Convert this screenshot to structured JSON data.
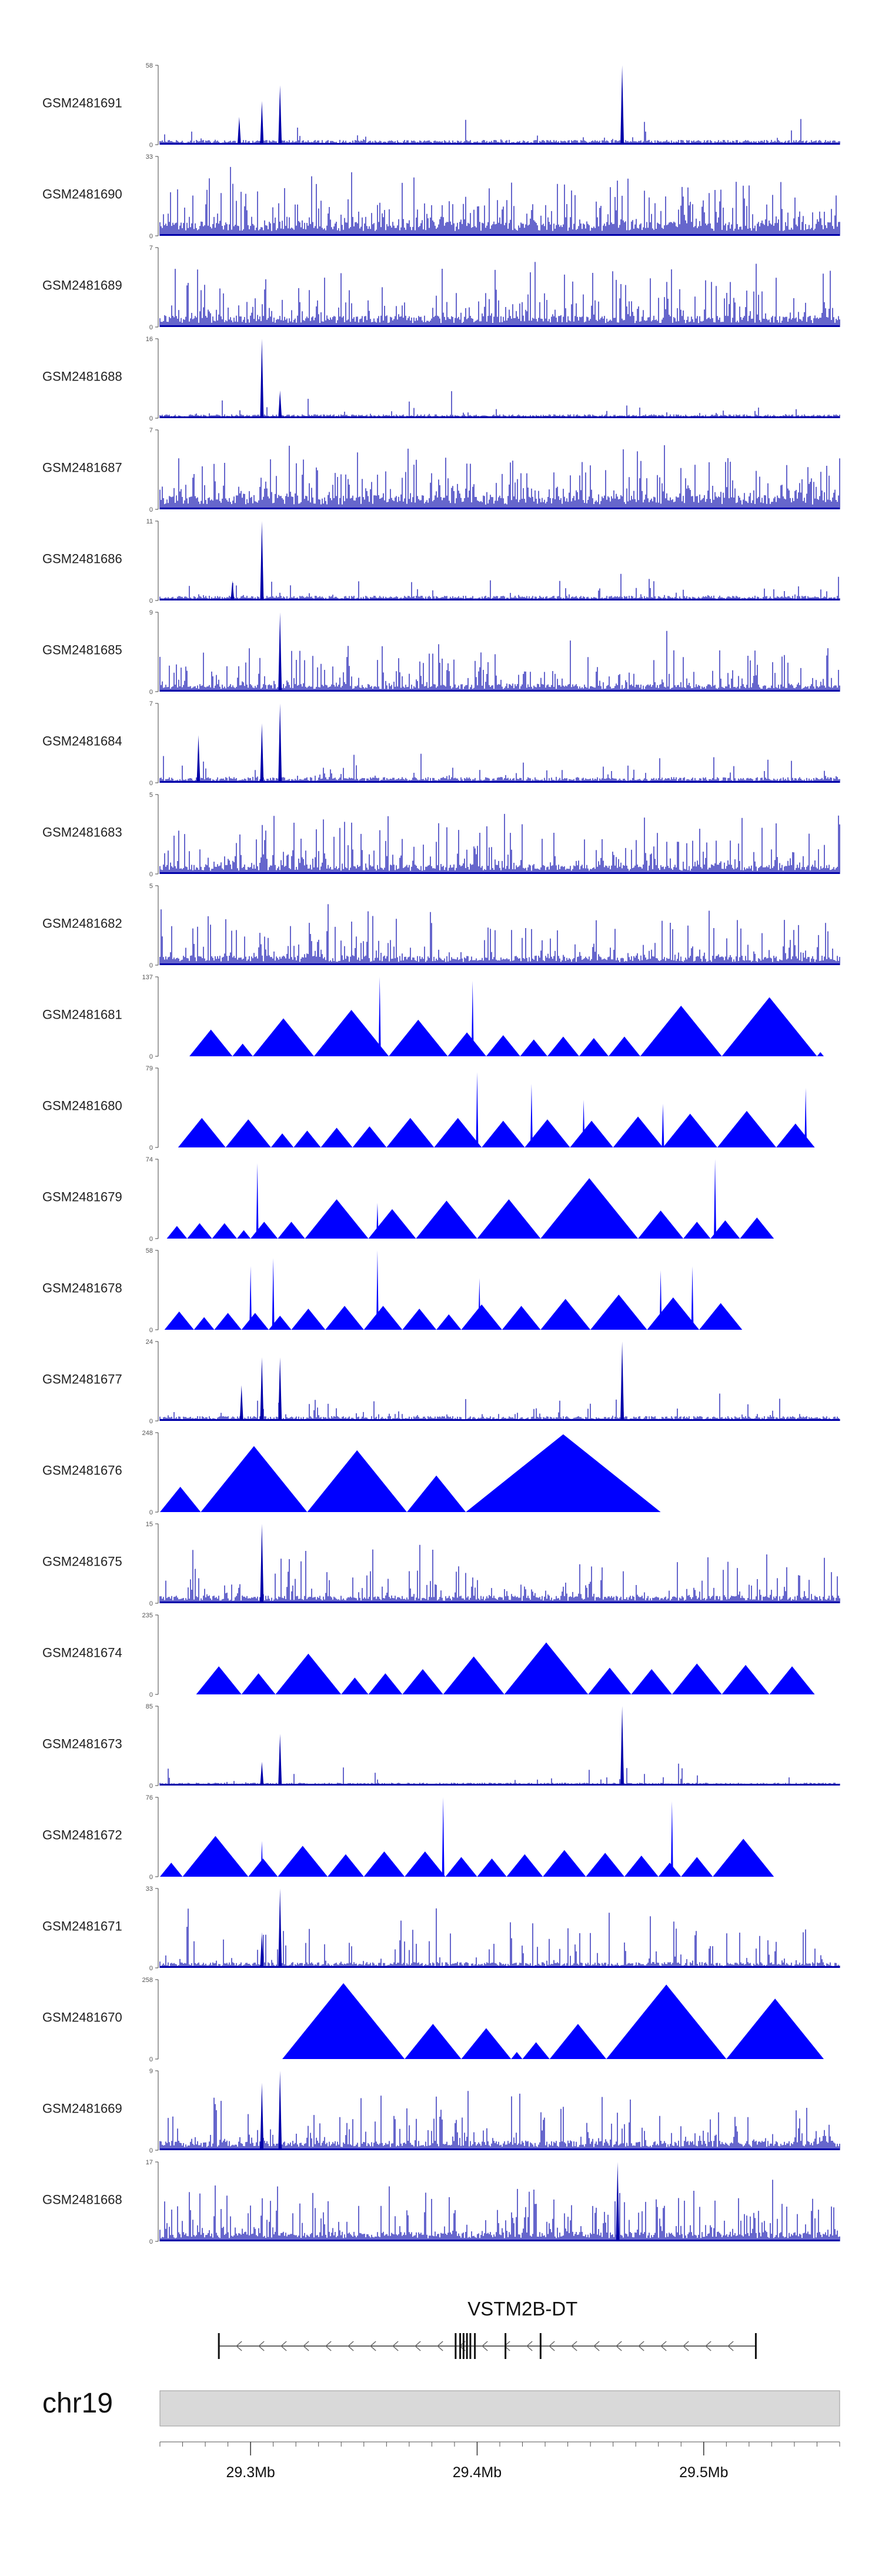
{
  "chart_data": {
    "type": "genome-browser-tracks",
    "colors": {
      "signal": "#0000ff",
      "spike": "#0000aa",
      "axis": "#444444",
      "ideogram": "#d9d9d9"
    },
    "region": {
      "chromosome": "chr19",
      "start_mb": 29.26,
      "end_mb": 29.56
    },
    "tracks": [
      {
        "name": "GSM2481691",
        "max": 58,
        "style": "spiky",
        "baseline": 0.05,
        "density": 0.06,
        "peaks": [
          {
            "pos": 29.295,
            "h": 0.35
          },
          {
            "pos": 29.305,
            "h": 0.55
          },
          {
            "pos": 29.313,
            "h": 0.75
          },
          {
            "pos": 29.464,
            "h": 1.0
          }
        ]
      },
      {
        "name": "GSM2481690",
        "max": 33,
        "style": "dense",
        "baseline": 0.15,
        "density": 0.45
      },
      {
        "name": "GSM2481689",
        "max": 7,
        "style": "dense",
        "baseline": 0.12,
        "density": 0.4
      },
      {
        "name": "GSM2481688",
        "max": 16,
        "style": "spiky",
        "baseline": 0.04,
        "density": 0.05,
        "peaks": [
          {
            "pos": 29.305,
            "h": 1.0
          },
          {
            "pos": 29.313,
            "h": 0.35
          }
        ]
      },
      {
        "name": "GSM2481687",
        "max": 7,
        "style": "dense",
        "baseline": 0.15,
        "density": 0.45
      },
      {
        "name": "GSM2481686",
        "max": 11,
        "style": "spiky",
        "baseline": 0.05,
        "density": 0.08,
        "peaks": [
          {
            "pos": 29.305,
            "h": 1.0
          },
          {
            "pos": 29.292,
            "h": 0.25
          }
        ]
      },
      {
        "name": "GSM2481685",
        "max": 9,
        "style": "dense",
        "baseline": 0.08,
        "density": 0.3,
        "peaks": [
          {
            "pos": 29.313,
            "h": 1.0
          }
        ]
      },
      {
        "name": "GSM2481684",
        "max": 7,
        "style": "spiky",
        "baseline": 0.06,
        "density": 0.12,
        "peaks": [
          {
            "pos": 29.313,
            "h": 1.0
          },
          {
            "pos": 29.305,
            "h": 0.75
          },
          {
            "pos": 29.277,
            "h": 0.6
          }
        ]
      },
      {
        "name": "GSM2481683",
        "max": 5,
        "style": "dense",
        "baseline": 0.1,
        "density": 0.35
      },
      {
        "name": "GSM2481682",
        "max": 5,
        "style": "dense",
        "baseline": 0.1,
        "density": 0.35
      },
      {
        "name": "GSM2481681",
        "max": 137,
        "style": "triangles",
        "starts": [
          29.273,
          29.292,
          29.301,
          29.328,
          29.361,
          29.387,
          29.404,
          29.419,
          29.431,
          29.445,
          29.458,
          29.472,
          29.508,
          29.55,
          29.553
        ],
        "peaks": [
          {
            "pos": 29.357,
            "h": 1.0
          },
          {
            "pos": 29.398,
            "h": 0.95
          }
        ]
      },
      {
        "name": "GSM2481680",
        "max": 79,
        "style": "triangles",
        "starts": [
          29.268,
          29.289,
          29.309,
          29.319,
          29.331,
          29.345,
          29.36,
          29.381,
          29.402,
          29.421,
          29.441,
          29.46,
          29.482,
          29.506,
          29.532,
          29.549
        ],
        "peaks": [
          {
            "pos": 29.4,
            "h": 0.95
          },
          {
            "pos": 29.424,
            "h": 0.8
          },
          {
            "pos": 29.447,
            "h": 0.6
          },
          {
            "pos": 29.482,
            "h": 0.55
          },
          {
            "pos": 29.545,
            "h": 0.75
          }
        ]
      },
      {
        "name": "GSM2481679",
        "max": 74,
        "style": "triangles",
        "starts": [
          29.263,
          29.272,
          29.283,
          29.294,
          29.3,
          29.312,
          29.324,
          29.352,
          29.373,
          29.4,
          29.428,
          29.471,
          29.491,
          29.503,
          29.516,
          29.531
        ],
        "peaks": [
          {
            "pos": 29.303,
            "h": 0.95
          },
          {
            "pos": 29.505,
            "h": 1.0
          },
          {
            "pos": 29.356,
            "h": 0.45
          }
        ]
      },
      {
        "name": "GSM2481678",
        "max": 58,
        "style": "triangles",
        "starts": [
          29.262,
          29.275,
          29.284,
          29.296,
          29.308,
          29.318,
          29.333,
          29.35,
          29.367,
          29.382,
          29.393,
          29.411,
          29.428,
          29.45,
          29.475,
          29.498,
          29.517
        ],
        "peaks": [
          {
            "pos": 29.3,
            "h": 0.8
          },
          {
            "pos": 29.31,
            "h": 0.9
          },
          {
            "pos": 29.356,
            "h": 1.0
          },
          {
            "pos": 29.401,
            "h": 0.65
          },
          {
            "pos": 29.481,
            "h": 0.75
          },
          {
            "pos": 29.495,
            "h": 0.8
          }
        ]
      },
      {
        "name": "GSM2481677",
        "max": 24,
        "style": "spiky",
        "baseline": 0.05,
        "density": 0.1,
        "peaks": [
          {
            "pos": 29.305,
            "h": 0.8
          },
          {
            "pos": 29.313,
            "h": 0.8
          },
          {
            "pos": 29.464,
            "h": 1.0
          },
          {
            "pos": 29.296,
            "h": 0.45
          }
        ]
      },
      {
        "name": "GSM2481676",
        "max": 248,
        "style": "triangles",
        "starts": [
          29.26,
          29.278,
          29.325,
          29.369,
          29.395,
          29.481
        ],
        "peaks": []
      },
      {
        "name": "GSM2481675",
        "max": 15,
        "style": "dense",
        "baseline": 0.08,
        "density": 0.3,
        "peaks": [
          {
            "pos": 29.305,
            "h": 1.0
          }
        ]
      },
      {
        "name": "GSM2481674",
        "max": 235,
        "style": "triangles",
        "starts": [
          29.276,
          29.296,
          29.311,
          29.34,
          29.352,
          29.367,
          29.385,
          29.412,
          29.449,
          29.468,
          29.486,
          29.508,
          29.529,
          29.549
        ],
        "peaks": []
      },
      {
        "name": "GSM2481673",
        "max": 85,
        "style": "spiky",
        "baseline": 0.03,
        "density": 0.05,
        "peaks": [
          {
            "pos": 29.305,
            "h": 0.3
          },
          {
            "pos": 29.313,
            "h": 0.65
          },
          {
            "pos": 29.464,
            "h": 1.0
          }
        ]
      },
      {
        "name": "GSM2481672",
        "max": 76,
        "style": "triangles",
        "starts": [
          29.26,
          29.27,
          29.299,
          29.312,
          29.334,
          29.35,
          29.368,
          29.386,
          29.4,
          29.413,
          29.429,
          29.448,
          29.465,
          29.48,
          29.49,
          29.504,
          29.531
        ],
        "peaks": [
          {
            "pos": 29.385,
            "h": 1.0
          },
          {
            "pos": 29.486,
            "h": 0.95
          },
          {
            "pos": 29.305,
            "h": 0.45
          }
        ]
      },
      {
        "name": "GSM2481671",
        "max": 33,
        "style": "dense",
        "baseline": 0.06,
        "density": 0.18,
        "peaks": [
          {
            "pos": 29.313,
            "h": 1.0
          },
          {
            "pos": 29.305,
            "h": 0.45
          }
        ]
      },
      {
        "name": "GSM2481670",
        "max": 258,
        "style": "triangles",
        "starts": [
          29.314,
          29.368,
          29.393,
          29.415,
          29.42,
          29.432,
          29.457,
          29.51,
          29.553
        ],
        "peaks": []
      },
      {
        "name": "GSM2481669",
        "max": 9,
        "style": "dense",
        "baseline": 0.1,
        "density": 0.3,
        "peaks": [
          {
            "pos": 29.305,
            "h": 0.85
          },
          {
            "pos": 29.313,
            "h": 1.0
          }
        ]
      },
      {
        "name": "GSM2481668",
        "max": 17,
        "style": "dense",
        "baseline": 0.1,
        "density": 0.35,
        "peaks": [
          {
            "pos": 29.462,
            "h": 1.0
          }
        ]
      }
    ],
    "gene": {
      "name": "VSTM2B-DT",
      "start": 29.286,
      "end": 29.523,
      "strand": "-",
      "exons": [
        29.3905,
        29.3925,
        29.394,
        29.3955,
        29.397,
        29.399,
        29.4125,
        29.428
      ]
    },
    "axis": {
      "ticks": [
        {
          "label": "29.3Mb",
          "pos": 29.3
        },
        {
          "label": "29.4Mb",
          "pos": 29.4
        },
        {
          "label": "29.5Mb",
          "pos": 29.5
        }
      ]
    }
  }
}
